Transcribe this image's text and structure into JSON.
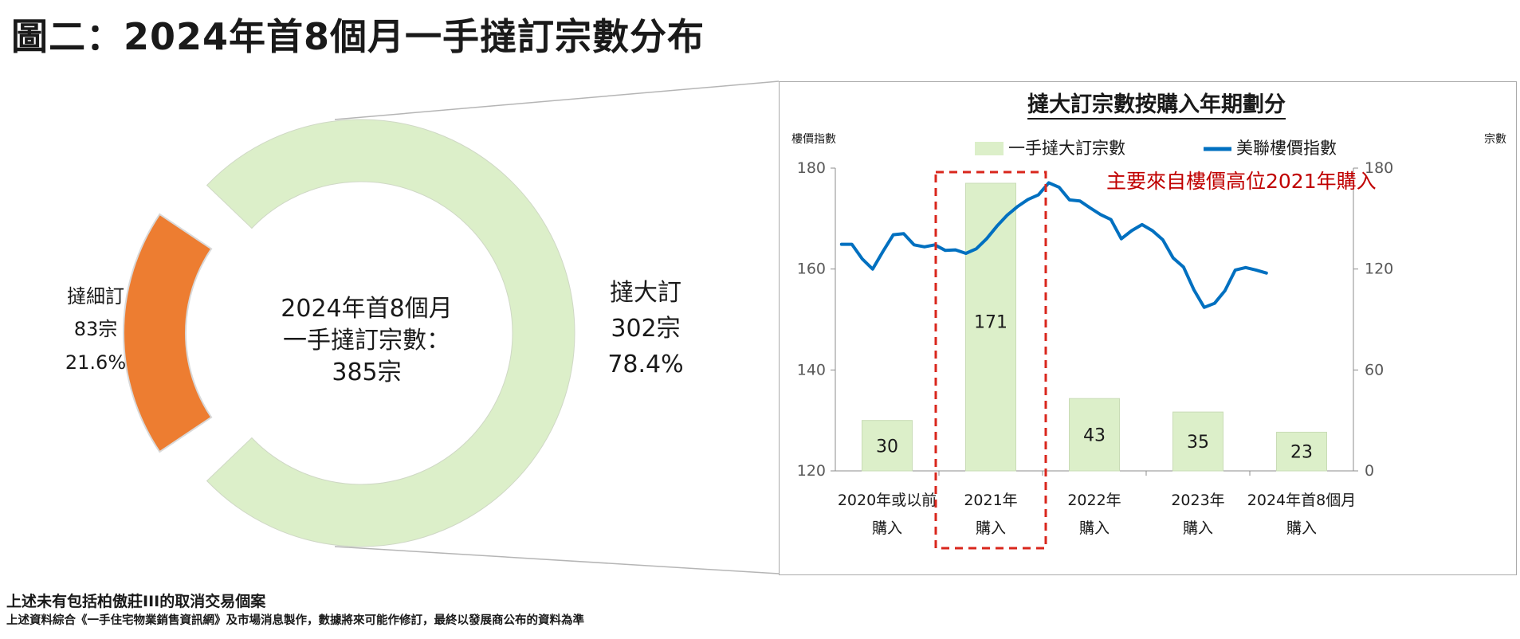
{
  "page_title": "圖二：2024年首8個月一手撻訂宗數分布",
  "donut": {
    "center_lines": [
      "2024年首8個月",
      "一手撻訂宗數：",
      "385宗"
    ],
    "segments": [
      {
        "name": "撻大訂",
        "count_label": "302宗",
        "pct_label": "78.4%",
        "value": 302,
        "color": "#dcefc9"
      },
      {
        "name": "撻細訂",
        "count_label": "83宗",
        "pct_label": "21.6%",
        "value": 83,
        "color": "#ed7d31"
      }
    ]
  },
  "chart_data": {
    "type": "bar",
    "title": "撻大訂宗數按購入年期劃分",
    "left_axis_label": "樓價指數",
    "right_axis_label": "宗數",
    "left_ylim": [
      120,
      180
    ],
    "left_ticks": [
      "120",
      "140",
      "160",
      "180"
    ],
    "right_ylim": [
      0,
      180
    ],
    "right_ticks": [
      "0",
      "60",
      "120",
      "180"
    ],
    "categories": [
      [
        "2020年或以前",
        "購入"
      ],
      [
        "2021年",
        "購入"
      ],
      [
        "2022年",
        "購入"
      ],
      [
        "2023年",
        "購入"
      ],
      [
        "2024年首8個月",
        "購入"
      ]
    ],
    "series": [
      {
        "name": "一手撻大訂宗數",
        "type": "bar",
        "axis": "right",
        "color": "#dcefc9",
        "values": [
          30,
          171,
          43,
          35,
          23
        ],
        "labels": [
          "30",
          "171",
          "43",
          "35",
          "23"
        ]
      },
      {
        "name": "美聯樓價指數",
        "type": "line",
        "axis": "left",
        "color": "#0070c0",
        "x": [
          0,
          0.1,
          0.2,
          0.3,
          0.4,
          0.5,
          0.6,
          0.7,
          0.8,
          0.9,
          1.0,
          1.1,
          1.2,
          1.3,
          1.4,
          1.5,
          1.6,
          1.7,
          1.8,
          1.9,
          2.0,
          2.1,
          2.2,
          2.3,
          2.4,
          2.5,
          2.6,
          2.7,
          2.8,
          2.9,
          3.0,
          3.1,
          3.2,
          3.3,
          3.4,
          3.5,
          3.6,
          3.7,
          3.8,
          3.9,
          4.0,
          4.1
        ],
        "values": [
          164.9,
          164.9,
          162.0,
          160.0,
          163.5,
          166.8,
          167.0,
          164.8,
          164.4,
          164.8,
          163.7,
          163.8,
          163.1,
          164.0,
          166.0,
          168.5,
          170.7,
          172.4,
          173.8,
          174.7,
          177.1,
          176.2,
          173.7,
          173.5,
          172.1,
          170.8,
          169.8,
          166.0,
          167.6,
          168.8,
          167.6,
          165.8,
          162.2,
          160.4,
          155.9,
          152.4,
          153.2,
          155.7,
          159.8,
          160.3,
          159.8,
          159.2
        ]
      }
    ],
    "annotation": "主要來自樓價高位2021年購入"
  },
  "notes": [
    "上述未有包括柏傲莊III的取消交易個案",
    "上述資料綜合《一手住宅物業銷售資訊網》及市場消息製作，數據將來可能作修訂，最終以發展商公布的資料為準"
  ]
}
